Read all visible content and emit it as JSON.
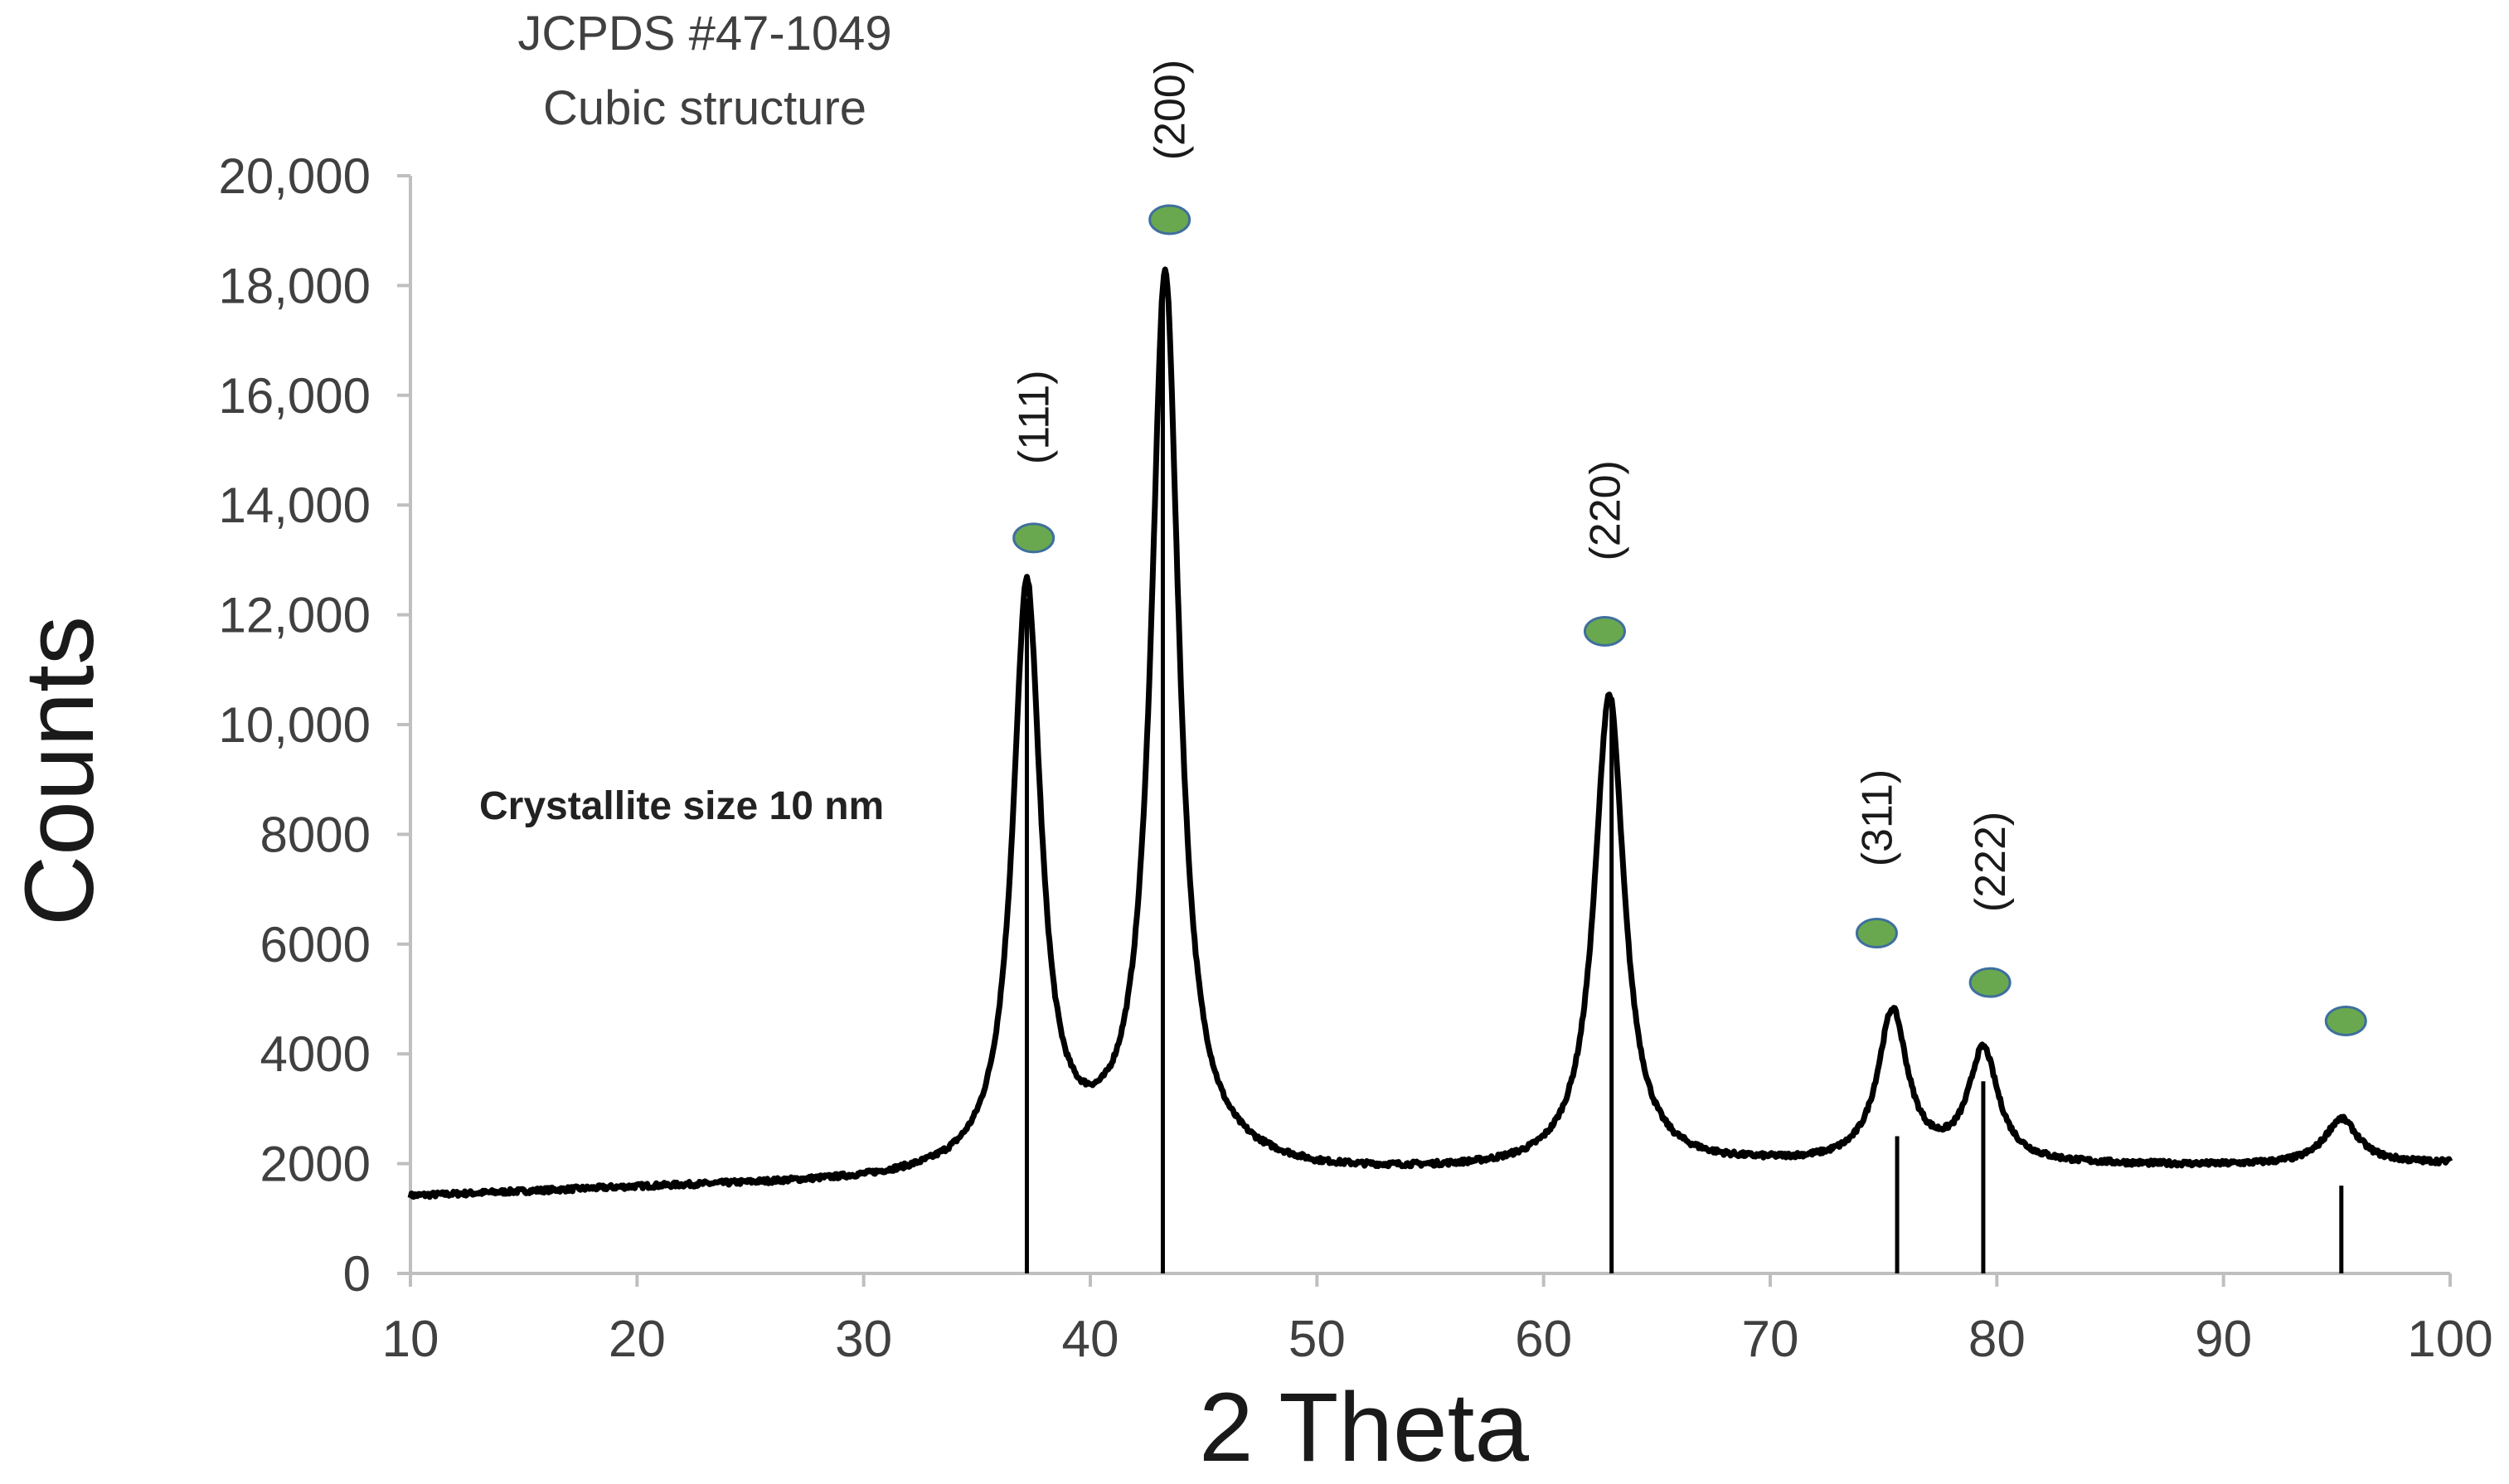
{
  "chart_data": {
    "type": "line",
    "note_lines": [
      "JCPDS #47-1049",
      "Cubic structure"
    ],
    "annotation": "Crystallite size 10 nm",
    "xlabel": "2 Theta",
    "ylabel": "Counts",
    "xlim": [
      10,
      100
    ],
    "ylim": [
      0,
      20000
    ],
    "x_ticks": [
      10,
      20,
      30,
      40,
      50,
      60,
      70,
      80,
      90,
      100
    ],
    "y_ticks": [
      0,
      2000,
      4000,
      6000,
      8000,
      10000,
      12000,
      14000,
      16000,
      18000,
      20000
    ],
    "y_tick_labels": [
      "0",
      "2000",
      "4000",
      "6000",
      "8000",
      "10,000",
      "12,000",
      "14,000",
      "16,000",
      "18,000",
      "20,000"
    ],
    "grid": false,
    "legend": "none",
    "series": [
      {
        "baseline": [
          [
            10,
            1400
          ],
          [
            20,
            1550
          ],
          [
            30,
            1650
          ],
          [
            35,
            1750
          ],
          [
            40,
            1950
          ],
          [
            46,
            1900
          ],
          [
            50,
            1800
          ],
          [
            60,
            1850
          ],
          [
            70,
            1950
          ],
          [
            80,
            1950
          ],
          [
            90,
            1950
          ],
          [
            100,
            2000
          ]
        ],
        "peaks": [
          {
            "x": 37.2,
            "y": 12400,
            "width": 0.75
          },
          {
            "x": 43.3,
            "y": 18100,
            "width": 0.75
          },
          {
            "x": 62.9,
            "y": 10500,
            "width": 0.8
          },
          {
            "x": 75.4,
            "y": 4700,
            "width": 0.8
          },
          {
            "x": 79.4,
            "y": 4000,
            "width": 0.8
          },
          {
            "x": 95.2,
            "y": 2800,
            "width": 0.9
          }
        ]
      }
    ],
    "reference_lines": [
      {
        "x": 37.2,
        "top": 12300
      },
      {
        "x": 43.2,
        "top": 18000
      },
      {
        "x": 63.0,
        "top": 10400
      },
      {
        "x": 75.6,
        "top": 2500
      },
      {
        "x": 79.4,
        "top": 3500
      },
      {
        "x": 95.2,
        "top": 1600
      }
    ],
    "peak_markers": [
      {
        "x": 37.5,
        "y": 13400,
        "label": "(111)",
        "label_y": 15600
      },
      {
        "x": 43.5,
        "y": 19200,
        "label": "(200)",
        "label_y": 21200
      },
      {
        "x": 62.7,
        "y": 11700,
        "label": "(220)",
        "label_y": 13900
      },
      {
        "x": 74.7,
        "y": 6200,
        "label": "(311)",
        "label_y": 8300
      },
      {
        "x": 79.7,
        "y": 5300,
        "label": "(222)",
        "label_y": 7500
      },
      {
        "x": 95.4,
        "y": 4600,
        "label": "",
        "label_y": 0
      }
    ],
    "colors": {
      "line": "#000000",
      "marker_fill": "#6aa84f",
      "marker_stroke": "#3e6f9e",
      "text": "#404040"
    }
  }
}
